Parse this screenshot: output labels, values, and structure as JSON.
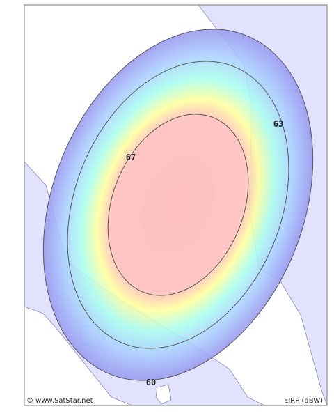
{
  "map": {
    "contours": [
      {
        "label": 60
      },
      {
        "label": 63
      },
      {
        "label": 67
      }
    ],
    "credit": "© www.SatStar.net",
    "unit_label": "EIRP (dBW)"
  }
}
